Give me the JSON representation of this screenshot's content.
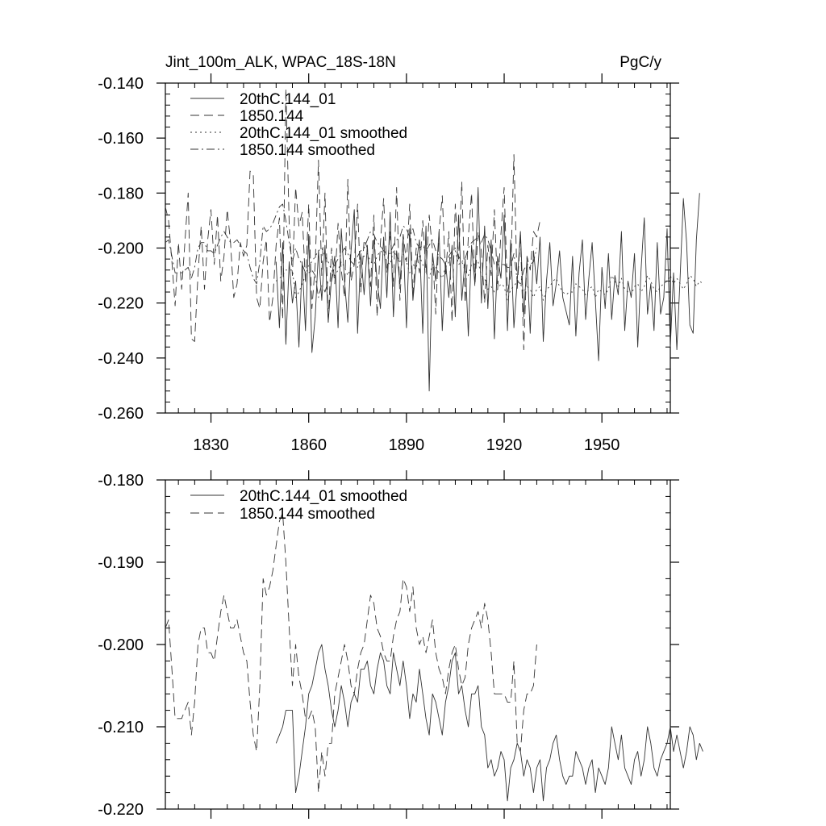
{
  "chart_data": [
    {
      "type": "line",
      "title_left": "Jint_100m_ALK, WPAC_18S-18N",
      "title_right": "PgC/y",
      "xlim": [
        1816,
        1971
      ],
      "ylim": [
        -0.26,
        -0.14
      ],
      "x_ticks": [
        1830,
        1860,
        1890,
        1920,
        1950
      ],
      "x_tick_labels": [
        "1830",
        "1860",
        "1890",
        "1920",
        "1950"
      ],
      "y_ticks": [
        -0.14,
        -0.16,
        -0.18,
        -0.2,
        -0.22,
        -0.24,
        -0.26
      ],
      "y_tick_labels": [
        "-0.140",
        "-0.160",
        "-0.180",
        "-0.200",
        "-0.220",
        "-0.240",
        "-0.260"
      ],
      "legend_position": "top-left",
      "series": [
        {
          "name": "20thC.144_01",
          "style": "solid",
          "x_start": 1850,
          "values": [
            -0.205,
            -0.229,
            -0.198,
            -0.235,
            -0.205,
            -0.22,
            -0.212,
            -0.236,
            -0.205,
            -0.23,
            -0.195,
            -0.238,
            -0.225,
            -0.201,
            -0.219,
            -0.199,
            -0.227,
            -0.211,
            -0.203,
            -0.229,
            -0.193,
            -0.212,
            -0.227,
            -0.201,
            -0.186,
            -0.231,
            -0.202,
            -0.217,
            -0.199,
            -0.221,
            -0.197,
            -0.212,
            -0.222,
            -0.196,
            -0.218,
            -0.187,
            -0.225,
            -0.201,
            -0.213,
            -0.196,
            -0.229,
            -0.193,
            -0.219,
            -0.206,
            -0.197,
            -0.231,
            -0.192,
            -0.252,
            -0.202,
            -0.212,
            -0.194,
            -0.23,
            -0.205,
            -0.218,
            -0.199,
            -0.225,
            -0.188,
            -0.219,
            -0.204,
            -0.232,
            -0.199,
            -0.213,
            -0.178,
            -0.22,
            -0.192,
            -0.222,
            -0.197,
            -0.233,
            -0.203,
            -0.211,
            -0.188,
            -0.23,
            -0.197,
            -0.229,
            -0.212,
            -0.194,
            -0.225,
            -0.204,
            -0.231,
            -0.201,
            -0.213,
            -0.196,
            -0.234,
            -0.212,
            -0.198,
            -0.221,
            -0.213,
            -0.201,
            -0.218,
            -0.223,
            -0.228,
            -0.203,
            -0.232,
            -0.209,
            -0.197,
            -0.226,
            -0.211,
            -0.198,
            -0.219,
            -0.241,
            -0.207,
            -0.222,
            -0.202,
            -0.226,
            -0.21,
            -0.217,
            -0.194,
            -0.23,
            -0.212,
            -0.218,
            -0.202,
            -0.236,
            -0.208,
            -0.189,
            -0.224,
            -0.213,
            -0.23,
            -0.198,
            -0.224,
            -0.218,
            -0.193,
            -0.236,
            -0.209,
            -0.237,
            -0.211,
            -0.182,
            -0.198,
            -0.228,
            -0.231,
            -0.197,
            -0.18
          ]
        },
        {
          "name": "1850.144",
          "style": "dashed",
          "x_start": 1816,
          "values": [
            -0.185,
            -0.19,
            -0.205,
            -0.221,
            -0.198,
            -0.215,
            -0.198,
            -0.18,
            -0.233,
            -0.234,
            -0.21,
            -0.192,
            -0.215,
            -0.197,
            -0.186,
            -0.206,
            -0.188,
            -0.212,
            -0.203,
            -0.186,
            -0.198,
            -0.218,
            -0.213,
            -0.198,
            -0.203,
            -0.199,
            -0.172,
            -0.173,
            -0.218,
            -0.222,
            -0.205,
            -0.197,
            -0.227,
            -0.218,
            -0.199,
            -0.189,
            -0.226,
            -0.142,
            -0.191,
            -0.21,
            -0.178,
            -0.192,
            -0.187,
            -0.213,
            -0.184,
            -0.222,
            -0.206,
            -0.168,
            -0.21,
            -0.18,
            -0.227,
            -0.2,
            -0.213,
            -0.191,
            -0.208,
            -0.218,
            -0.175,
            -0.212,
            -0.206,
            -0.184,
            -0.216,
            -0.197,
            -0.2,
            -0.214,
            -0.188,
            -0.225,
            -0.198,
            -0.182,
            -0.209,
            -0.194,
            -0.214,
            -0.178,
            -0.219,
            -0.195,
            -0.205,
            -0.184,
            -0.217,
            -0.2,
            -0.209,
            -0.19,
            -0.209,
            -0.188,
            -0.201,
            -0.224,
            -0.194,
            -0.181,
            -0.21,
            -0.194,
            -0.227,
            -0.184,
            -0.204,
            -0.176,
            -0.22,
            -0.196,
            -0.18,
            -0.214,
            -0.194,
            -0.201,
            -0.22,
            -0.199,
            -0.21,
            -0.186,
            -0.215,
            -0.195,
            -0.178,
            -0.216,
            -0.21,
            -0.166,
            -0.215,
            -0.195,
            -0.237,
            -0.203,
            -0.208,
            -0.194,
            -0.196,
            -0.19
          ]
        },
        {
          "name": "20thC.144_01 smoothed",
          "style": "dotted",
          "x_start": 1850,
          "values": [
            -0.212,
            -0.211,
            -0.21,
            -0.208,
            -0.208,
            -0.208,
            -0.218,
            -0.216,
            -0.213,
            -0.21,
            -0.206,
            -0.205,
            -0.203,
            -0.201,
            -0.2,
            -0.203,
            -0.205,
            -0.208,
            -0.21,
            -0.208,
            -0.205,
            -0.207,
            -0.21,
            -0.207,
            -0.206,
            -0.207,
            -0.203,
            -0.203,
            -0.202,
            -0.205,
            -0.206,
            -0.203,
            -0.201,
            -0.202,
            -0.205,
            -0.206,
            -0.201,
            -0.203,
            -0.205,
            -0.202,
            -0.205,
            -0.209,
            -0.206,
            -0.207,
            -0.203,
            -0.206,
            -0.209,
            -0.211,
            -0.206,
            -0.207,
            -0.209,
            -0.211,
            -0.207,
            -0.205,
            -0.202,
            -0.201,
            -0.206,
            -0.205,
            -0.208,
            -0.21,
            -0.206,
            -0.206,
            -0.205,
            -0.21,
            -0.211,
            -0.215,
            -0.214,
            -0.216,
            -0.215,
            -0.213,
            -0.214,
            -0.219,
            -0.215,
            -0.214,
            -0.212,
            -0.213,
            -0.216,
            -0.214,
            -0.215,
            -0.218,
            -0.215,
            -0.214,
            -0.219,
            -0.215,
            -0.214,
            -0.212,
            -0.211,
            -0.214,
            -0.216,
            -0.217,
            -0.216,
            -0.216,
            -0.213,
            -0.214,
            -0.215,
            -0.217,
            -0.215,
            -0.214,
            -0.218,
            -0.215,
            -0.216,
            -0.217,
            -0.215,
            -0.21,
            -0.212,
            -0.214,
            -0.211,
            -0.215,
            -0.216,
            -0.217,
            -0.214,
            -0.213,
            -0.216,
            -0.214,
            -0.21,
            -0.212,
            -0.215,
            -0.216,
            -0.214,
            -0.213,
            -0.212,
            -0.21,
            -0.213,
            -0.211,
            -0.213,
            -0.215,
            -0.213,
            -0.21,
            -0.211,
            -0.214,
            -0.212,
            -0.213
          ]
        },
        {
          "name": "1850.144 smoothed",
          "style": "dashdot",
          "x_start": 1816,
          "values": [
            -0.198,
            -0.197,
            -0.203,
            -0.209,
            -0.209,
            -0.209,
            -0.208,
            -0.207,
            -0.211,
            -0.207,
            -0.2,
            -0.198,
            -0.198,
            -0.201,
            -0.201,
            -0.202,
            -0.199,
            -0.196,
            -0.194,
            -0.196,
            -0.198,
            -0.198,
            -0.197,
            -0.199,
            -0.201,
            -0.202,
            -0.207,
            -0.211,
            -0.213,
            -0.205,
            -0.192,
            -0.194,
            -0.193,
            -0.191,
            -0.188,
            -0.185,
            -0.184,
            -0.19,
            -0.198,
            -0.205,
            -0.2,
            -0.204,
            -0.206,
            -0.209,
            -0.209,
            -0.208,
            -0.21,
            -0.218,
            -0.213,
            -0.216,
            -0.212,
            -0.212,
            -0.206,
            -0.204,
            -0.202,
            -0.2,
            -0.202,
            -0.205,
            -0.206,
            -0.203,
            -0.201,
            -0.2,
            -0.197,
            -0.194,
            -0.195,
            -0.198,
            -0.199,
            -0.201,
            -0.202,
            -0.202,
            -0.199,
            -0.197,
            -0.196,
            -0.192,
            -0.193,
            -0.196,
            -0.193,
            -0.198,
            -0.2,
            -0.199,
            -0.201,
            -0.199,
            -0.197,
            -0.201,
            -0.203,
            -0.204,
            -0.206,
            -0.203,
            -0.201,
            -0.2,
            -0.203,
            -0.205,
            -0.204,
            -0.2,
            -0.198,
            -0.197,
            -0.196,
            -0.198,
            -0.195,
            -0.197,
            -0.201,
            -0.206,
            -0.206,
            -0.206,
            -0.206,
            -0.207,
            -0.207,
            -0.202,
            -0.212,
            -0.213,
            -0.208,
            -0.206,
            -0.206,
            -0.205,
            -0.2
          ]
        }
      ]
    },
    {
      "type": "line",
      "xlim": [
        1816,
        1971
      ],
      "ylim": [
        -0.22,
        -0.18
      ],
      "x_ticks": [
        1830,
        1860,
        1890,
        1920,
        1950
      ],
      "y_ticks": [
        -0.18,
        -0.19,
        -0.2,
        -0.21,
        -0.22
      ],
      "y_tick_labels": [
        "-0.180",
        "-0.190",
        "-0.200",
        "-0.210",
        "-0.220"
      ],
      "legend_position": "top-left",
      "series": [
        {
          "name": "20thC.144_01 smoothed",
          "style": "solid",
          "x_start": 1850,
          "values": [
            -0.212,
            -0.211,
            -0.21,
            -0.208,
            -0.208,
            -0.208,
            -0.218,
            -0.216,
            -0.213,
            -0.21,
            -0.206,
            -0.205,
            -0.203,
            -0.201,
            -0.2,
            -0.203,
            -0.205,
            -0.208,
            -0.21,
            -0.208,
            -0.205,
            -0.207,
            -0.21,
            -0.207,
            -0.206,
            -0.207,
            -0.203,
            -0.203,
            -0.202,
            -0.205,
            -0.206,
            -0.203,
            -0.201,
            -0.202,
            -0.205,
            -0.206,
            -0.201,
            -0.203,
            -0.205,
            -0.202,
            -0.205,
            -0.209,
            -0.206,
            -0.207,
            -0.203,
            -0.206,
            -0.209,
            -0.211,
            -0.206,
            -0.207,
            -0.209,
            -0.211,
            -0.207,
            -0.205,
            -0.202,
            -0.201,
            -0.206,
            -0.205,
            -0.208,
            -0.21,
            -0.206,
            -0.206,
            -0.205,
            -0.21,
            -0.211,
            -0.215,
            -0.214,
            -0.216,
            -0.215,
            -0.213,
            -0.214,
            -0.219,
            -0.215,
            -0.214,
            -0.212,
            -0.213,
            -0.216,
            -0.214,
            -0.215,
            -0.218,
            -0.215,
            -0.214,
            -0.219,
            -0.215,
            -0.214,
            -0.212,
            -0.211,
            -0.214,
            -0.216,
            -0.217,
            -0.216,
            -0.216,
            -0.213,
            -0.214,
            -0.215,
            -0.217,
            -0.215,
            -0.214,
            -0.218,
            -0.215,
            -0.216,
            -0.217,
            -0.215,
            -0.21,
            -0.212,
            -0.214,
            -0.211,
            -0.215,
            -0.216,
            -0.217,
            -0.214,
            -0.213,
            -0.216,
            -0.214,
            -0.21,
            -0.212,
            -0.215,
            -0.216,
            -0.214,
            -0.213,
            -0.212,
            -0.21,
            -0.213,
            -0.211,
            -0.213,
            -0.215,
            -0.213,
            -0.21,
            -0.211,
            -0.214,
            -0.212,
            -0.213
          ]
        },
        {
          "name": "1850.144 smoothed",
          "style": "dashed",
          "x_start": 1816,
          "values": [
            -0.198,
            -0.197,
            -0.203,
            -0.209,
            -0.209,
            -0.209,
            -0.208,
            -0.207,
            -0.211,
            -0.207,
            -0.2,
            -0.198,
            -0.198,
            -0.201,
            -0.201,
            -0.202,
            -0.199,
            -0.196,
            -0.194,
            -0.196,
            -0.198,
            -0.198,
            -0.197,
            -0.199,
            -0.201,
            -0.202,
            -0.207,
            -0.211,
            -0.213,
            -0.205,
            -0.192,
            -0.194,
            -0.193,
            -0.191,
            -0.188,
            -0.185,
            -0.184,
            -0.19,
            -0.198,
            -0.205,
            -0.2,
            -0.204,
            -0.206,
            -0.209,
            -0.209,
            -0.208,
            -0.21,
            -0.218,
            -0.213,
            -0.216,
            -0.212,
            -0.212,
            -0.206,
            -0.204,
            -0.202,
            -0.2,
            -0.202,
            -0.205,
            -0.206,
            -0.203,
            -0.201,
            -0.2,
            -0.197,
            -0.194,
            -0.195,
            -0.198,
            -0.199,
            -0.201,
            -0.202,
            -0.202,
            -0.199,
            -0.197,
            -0.196,
            -0.192,
            -0.193,
            -0.196,
            -0.193,
            -0.198,
            -0.2,
            -0.199,
            -0.201,
            -0.199,
            -0.197,
            -0.201,
            -0.203,
            -0.204,
            -0.206,
            -0.203,
            -0.201,
            -0.2,
            -0.203,
            -0.205,
            -0.204,
            -0.2,
            -0.198,
            -0.197,
            -0.196,
            -0.198,
            -0.195,
            -0.197,
            -0.201,
            -0.206,
            -0.206,
            -0.206,
            -0.206,
            -0.207,
            -0.207,
            -0.202,
            -0.212,
            -0.213,
            -0.208,
            -0.206,
            -0.206,
            -0.205,
            -0.2
          ]
        }
      ]
    }
  ]
}
